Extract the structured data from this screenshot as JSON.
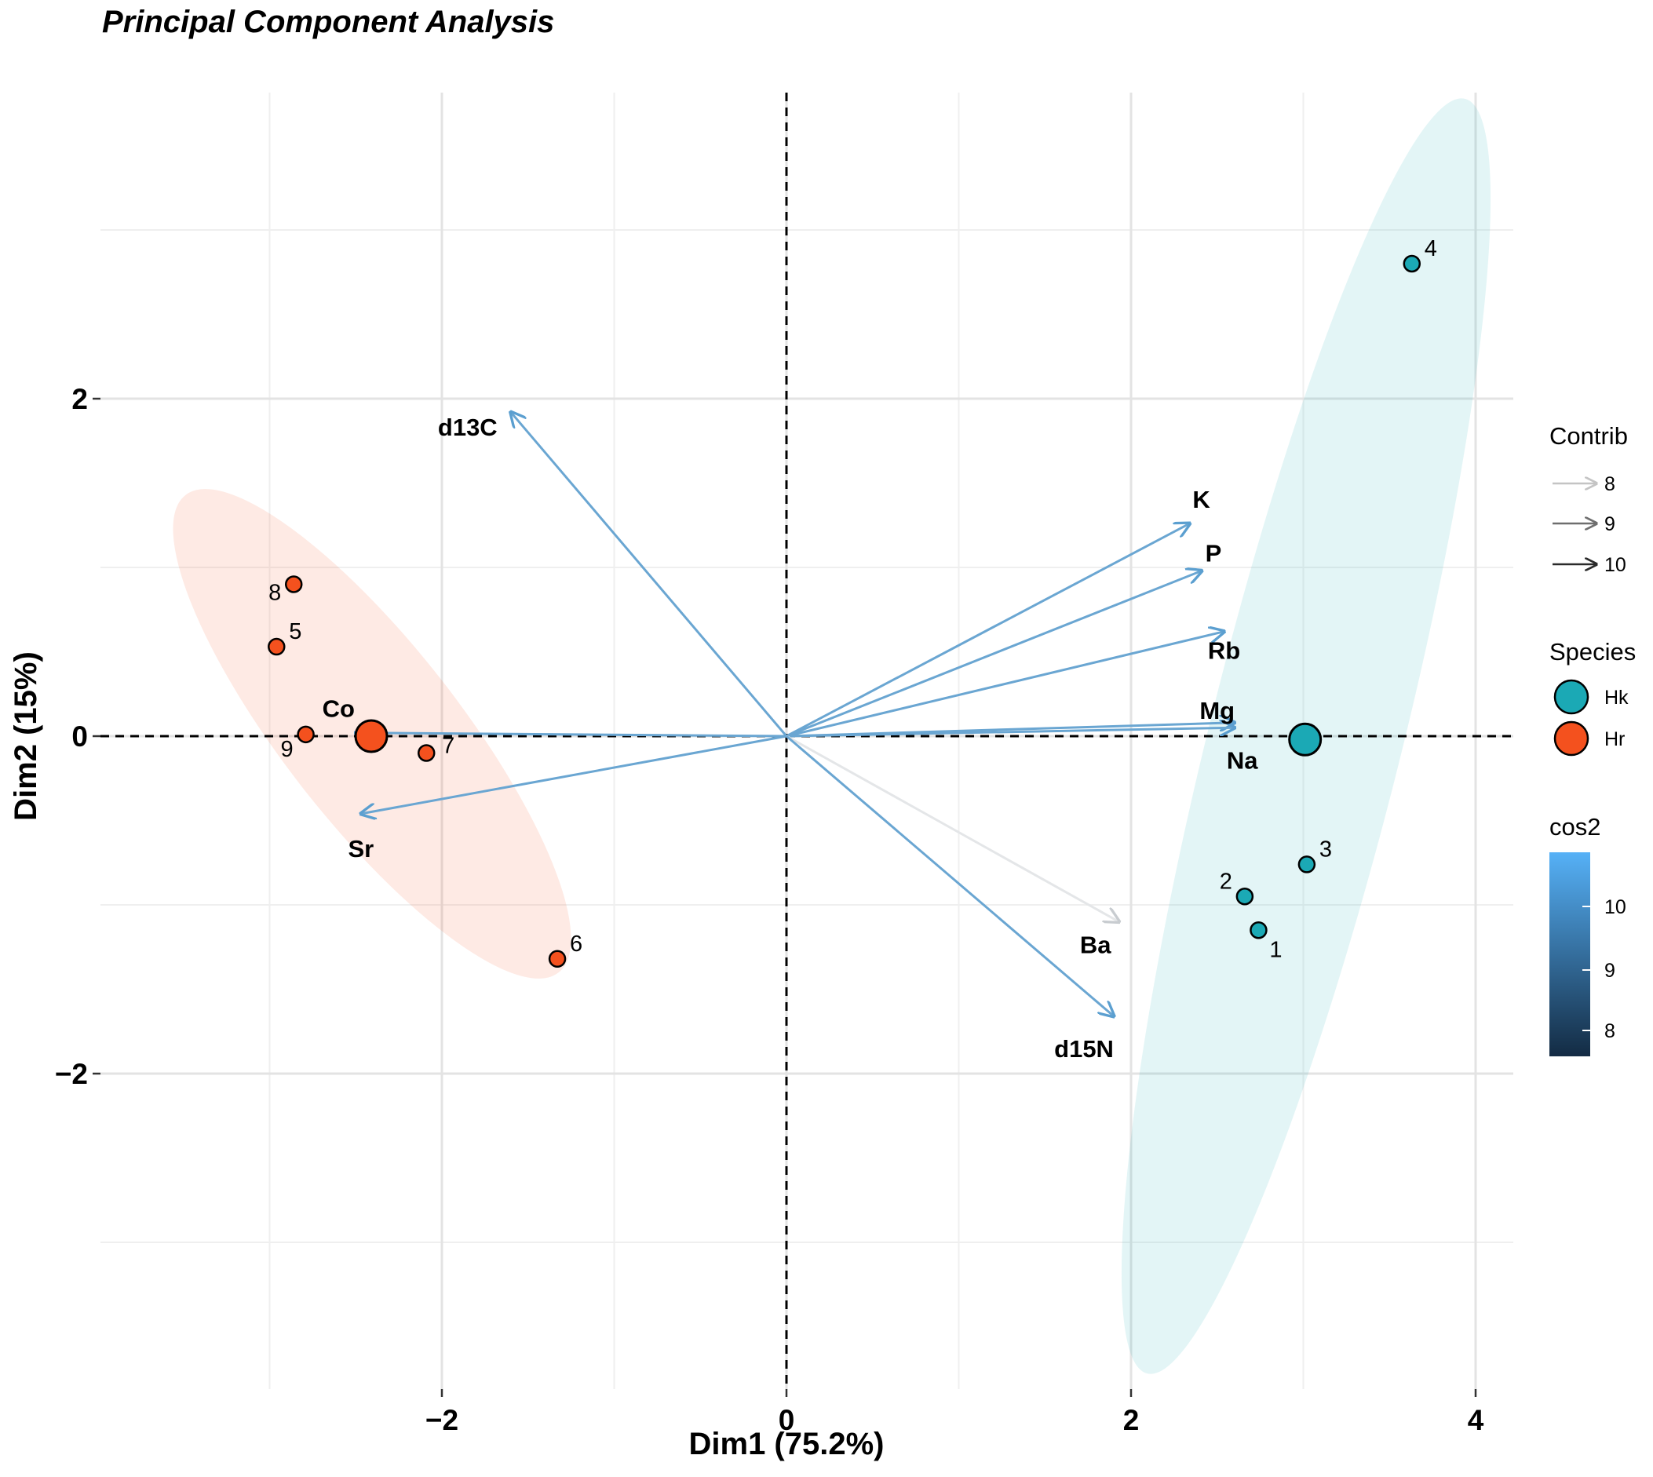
{
  "chart_data": {
    "type": "scatter",
    "title": "Principal Component Analysis",
    "xlabel": "Dim1 (75.2%)",
    "ylabel": "Dim2 (15%)",
    "xlim": [
      -3.8,
      4.2
    ],
    "ylim": [
      -3.7,
      3.8
    ],
    "x_ticks": [
      -2,
      0,
      2,
      4
    ],
    "x_tick_labels": [
      "−2",
      "0",
      "2",
      "4"
    ],
    "y_ticks": [
      2,
      0,
      -2
    ],
    "y_tick_labels": [
      "2",
      "0",
      "−2"
    ],
    "x_minor_grid": [
      -3,
      -1,
      1,
      3
    ],
    "y_minor_grid": [
      3,
      1,
      -1,
      -3
    ],
    "grid": true,
    "individuals": [
      {
        "label": "1",
        "species": "Hk",
        "x": 2.74,
        "y": -1.15
      },
      {
        "label": "2",
        "species": "Hk",
        "x": 2.66,
        "y": -0.95
      },
      {
        "label": "3",
        "species": "Hk",
        "x": 3.02,
        "y": -0.76
      },
      {
        "label": "4",
        "species": "Hk",
        "x": 3.63,
        "y": 2.8
      },
      {
        "label": "5",
        "species": "Hr",
        "x": -2.96,
        "y": 0.53
      },
      {
        "label": "6",
        "species": "Hr",
        "x": -1.33,
        "y": -1.32
      },
      {
        "label": "7",
        "species": "Hr",
        "x": -2.09,
        "y": -0.1
      },
      {
        "label": "8",
        "species": "Hr",
        "x": -2.86,
        "y": 0.9
      },
      {
        "label": "9",
        "species": "Hr",
        "x": -2.79,
        "y": 0.01
      }
    ],
    "group_centroids": [
      {
        "species": "Hk",
        "x": 3.01,
        "y": -0.02
      },
      {
        "species": "Hr",
        "x": -2.41,
        "y": 0.0
      }
    ],
    "variables": [
      {
        "name": "d13C",
        "x": -1.6,
        "y": 1.92,
        "contrib": 9.2,
        "cos2": 9.6
      },
      {
        "name": "K",
        "x": 2.34,
        "y": 1.26,
        "contrib": 9.5,
        "cos2": 9.8
      },
      {
        "name": "P",
        "x": 2.41,
        "y": 0.98,
        "contrib": 9.5,
        "cos2": 9.8
      },
      {
        "name": "Rb",
        "x": 2.54,
        "y": 0.62,
        "contrib": 9.4,
        "cos2": 9.8
      },
      {
        "name": "Mg",
        "x": 2.6,
        "y": 0.08,
        "contrib": 9.6,
        "cos2": 9.9
      },
      {
        "name": "Na",
        "x": 2.6,
        "y": 0.05,
        "contrib": 9.6,
        "cos2": 9.9
      },
      {
        "name": "Co",
        "x": -2.5,
        "y": 0.02,
        "contrib": 9.5,
        "cos2": 9.8
      },
      {
        "name": "Sr",
        "x": -2.47,
        "y": -0.46,
        "contrib": 9.4,
        "cos2": 9.7
      },
      {
        "name": "Ba",
        "x": 1.93,
        "y": -1.1,
        "contrib": 8.0,
        "cos2": 7.9
      },
      {
        "name": "d15N",
        "x": 1.9,
        "y": -1.66,
        "contrib": 9.3,
        "cos2": 9.6
      }
    ],
    "legend": {
      "contrib": {
        "title": "Contrib",
        "items": [
          "8",
          "9",
          "10"
        ]
      },
      "species": {
        "title": "Species",
        "items": [
          {
            "label": "Hk",
            "color": "#1ba9b5"
          },
          {
            "label": "Hr",
            "color": "#f4511e"
          }
        ]
      },
      "cos2": {
        "title": "cos2",
        "ticks": [
          "10",
          "9",
          "8"
        ],
        "colors": [
          "#56b1f7",
          "#132b43"
        ]
      },
      "position": "right"
    }
  }
}
